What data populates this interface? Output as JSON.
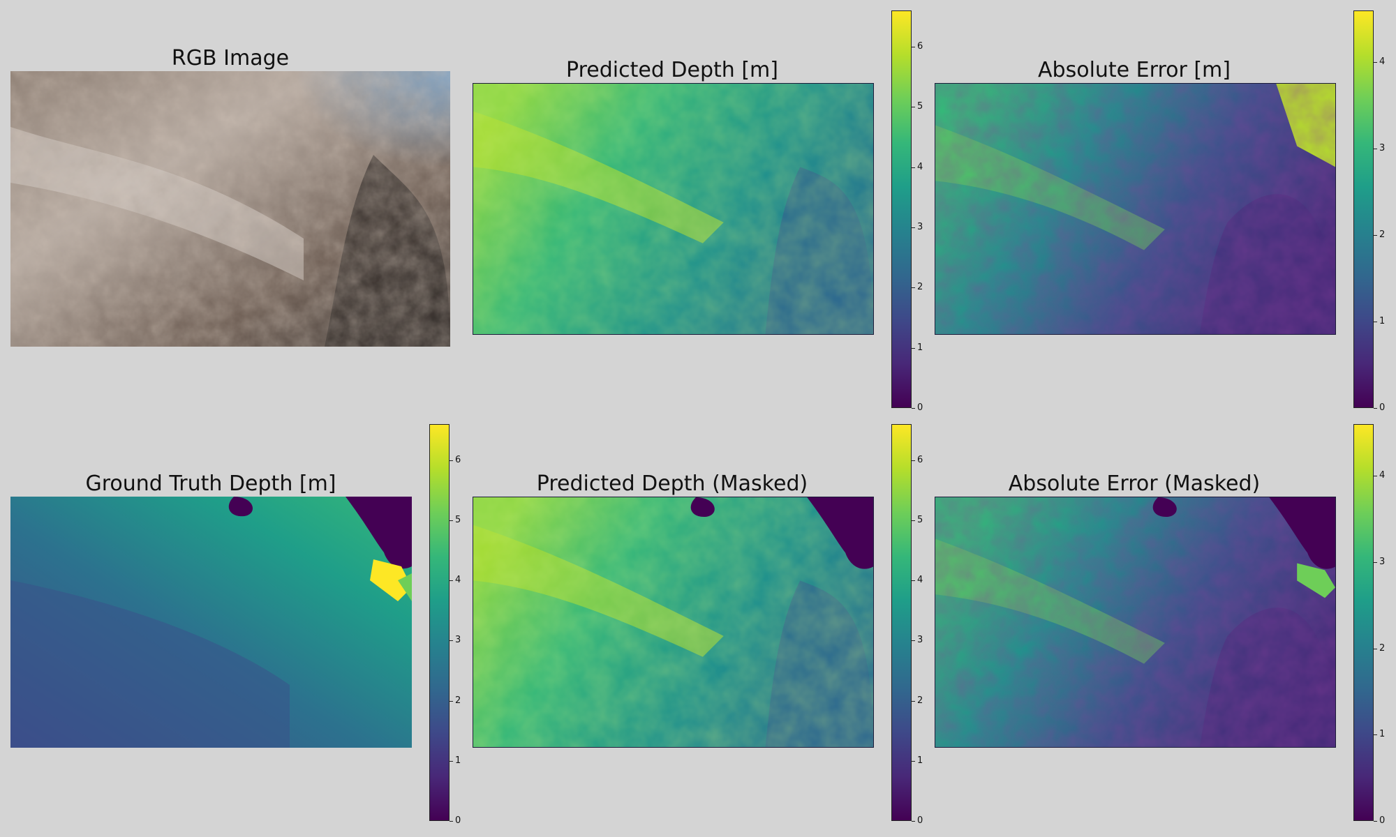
{
  "chart_data": [
    {
      "type": "image",
      "title": "RGB Image",
      "key": "rgb"
    },
    {
      "type": "heatmap",
      "title": "Predicted Depth [m]",
      "key": "pred",
      "colormap": "viridis",
      "colorbar": {
        "vmin": 0,
        "vmax": 6.6,
        "ticks": [
          0,
          1,
          2,
          3,
          4,
          5,
          6
        ]
      }
    },
    {
      "type": "heatmap",
      "title": "Absolute Error [m]",
      "key": "err",
      "colormap": "viridis",
      "colorbar": {
        "vmin": 0,
        "vmax": 4.6,
        "ticks": [
          0,
          1,
          2,
          3,
          4
        ]
      }
    },
    {
      "type": "heatmap",
      "title": "Ground Truth Depth [m]",
      "key": "gt",
      "colormap": "viridis",
      "colorbar": {
        "vmin": 0,
        "vmax": 6.6,
        "ticks": [
          0,
          1,
          2,
          3,
          4,
          5,
          6
        ]
      }
    },
    {
      "type": "heatmap",
      "title": "Predicted Depth (Masked)",
      "key": "predm",
      "colormap": "viridis",
      "colorbar": {
        "vmin": 0,
        "vmax": 6.6,
        "ticks": [
          0,
          1,
          2,
          3,
          4,
          5,
          6
        ]
      }
    },
    {
      "type": "heatmap",
      "title": "Absolute Error (Masked)",
      "key": "errm",
      "colormap": "viridis",
      "colorbar": {
        "vmin": 0,
        "vmax": 4.6,
        "ticks": [
          0,
          1,
          2,
          3,
          4
        ]
      }
    }
  ],
  "colors": {
    "background": "#d4d4d4",
    "viridis": [
      "#440154",
      "#482878",
      "#3e4989",
      "#31688e",
      "#26828e",
      "#1f9e89",
      "#35b779",
      "#6ece58",
      "#b5de2b",
      "#fde725"
    ]
  }
}
